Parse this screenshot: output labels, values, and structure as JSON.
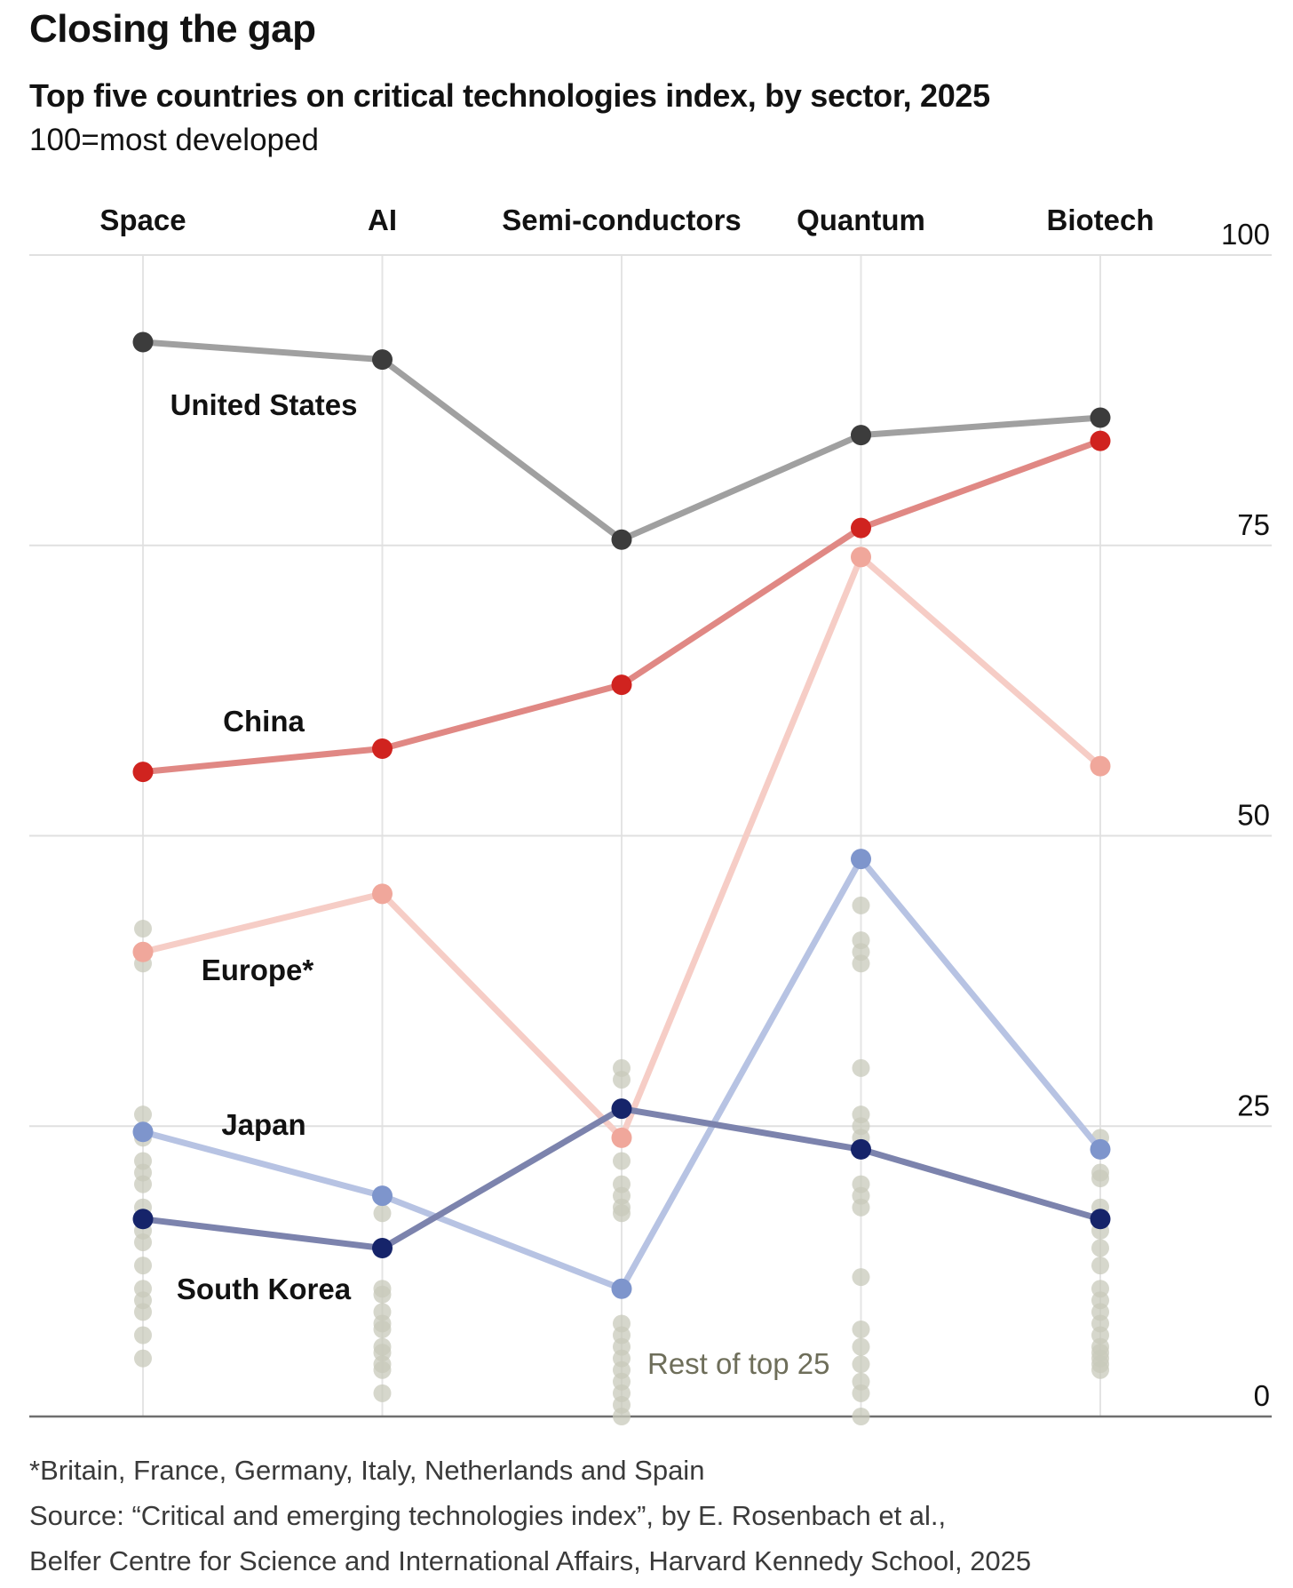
{
  "title": "Closing the gap",
  "subtitle": "Top five countries on critical technologies index, by sector, 2025",
  "unit_note": "100=most developed",
  "footnote": "*Britain, France, Germany, Italy, Netherlands and Spain",
  "source_line1": "Source: “Critical and emerging technologies index”, by E. Rosenbach et al.,",
  "source_line2": "Belfer Centre for Science and International Affairs, Harvard Kennedy School, 2025",
  "chart_data": {
    "type": "line",
    "categories": [
      "Space",
      "AI",
      "Semi-conductors",
      "Quantum",
      "Biotech"
    ],
    "ylim": [
      0,
      100
    ],
    "yticks": [
      0,
      25,
      50,
      75,
      100
    ],
    "ytick_labels": [
      "0",
      "25",
      "50",
      "75",
      "100"
    ],
    "grid": true,
    "series": [
      {
        "name": "United States",
        "color": "#3c3c3c",
        "line_color": "#a0a0a0",
        "values": [
          92.5,
          91,
          75.5,
          84.5,
          86
        ]
      },
      {
        "name": "China",
        "color": "#d0231f",
        "line_color": "#e08884",
        "values": [
          55.5,
          57.5,
          63,
          76.5,
          84
        ]
      },
      {
        "name": "Europe*",
        "color": "#f0a79b",
        "line_color": "#f6cdc6",
        "values": [
          40,
          45,
          24,
          74,
          56
        ]
      },
      {
        "name": "Japan",
        "color": "#7e95cc",
        "line_color": "#b7c3e3",
        "values": [
          24.5,
          19,
          11,
          48,
          23
        ]
      },
      {
        "name": "South Korea",
        "color": "#16246a",
        "line_color": "#7c83ad",
        "values": [
          17,
          14.5,
          26.5,
          23,
          17
        ]
      }
    ],
    "rest_label": "Rest of top 25",
    "rest_color": "#c8c9bb",
    "rest_points": [
      [
        42,
        39,
        26,
        24,
        22,
        21,
        20,
        18,
        16,
        15,
        13,
        11,
        10,
        9,
        7,
        5
      ],
      [
        17.5,
        11,
        10.5,
        9,
        8,
        7.5,
        6,
        5.5,
        4.5,
        2,
        4
      ],
      [
        30,
        29,
        22,
        20,
        19,
        18,
        17.5,
        8,
        7,
        6,
        5,
        4,
        3,
        1,
        0,
        2
      ],
      [
        44,
        41,
        40,
        39,
        30,
        26,
        25,
        24,
        20,
        19,
        18,
        12,
        7.5,
        6,
        4.5,
        3,
        2,
        0
      ],
      [
        24,
        21,
        20.5,
        18,
        16,
        14.5,
        13,
        11,
        10,
        9,
        8,
        7,
        6,
        5.5,
        5,
        4.5,
        4
      ]
    ]
  }
}
